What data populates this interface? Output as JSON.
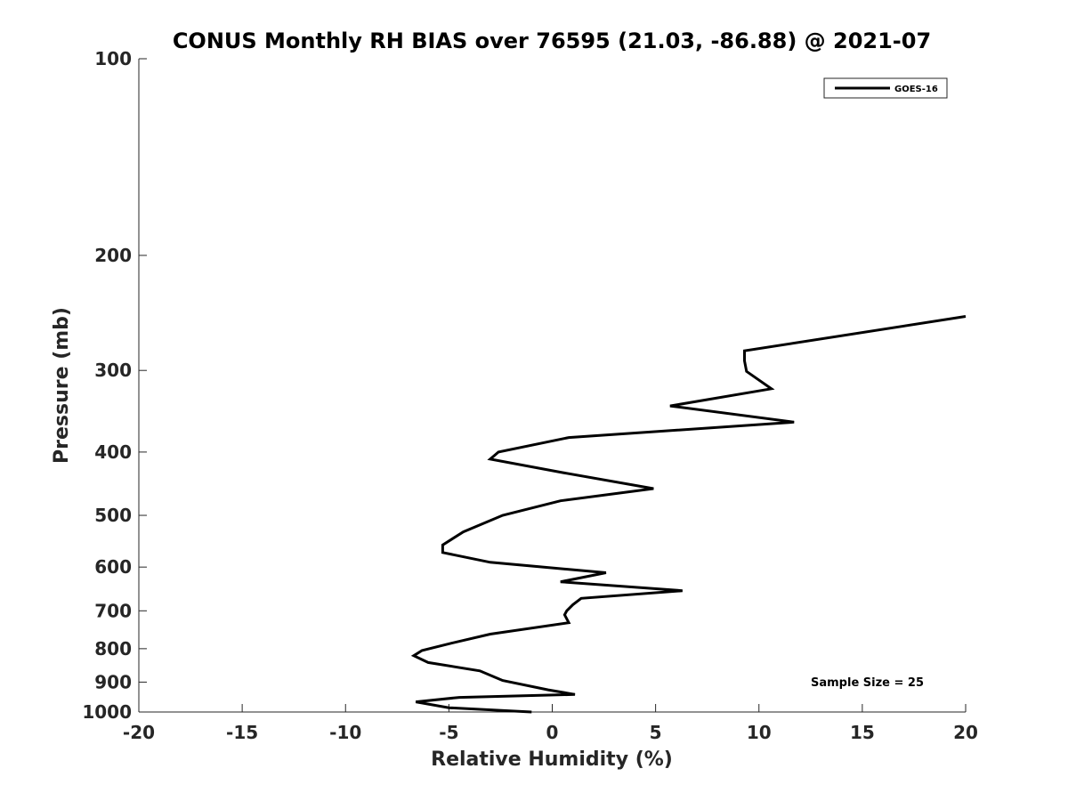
{
  "chart_data": {
    "type": "line",
    "title": "CONUS Monthly RH BIAS over 76595 (21.03, -86.88) @ 2021-07",
    "xlabel": "Relative Humidity (%)",
    "ylabel": "Pressure (mb)",
    "xlim": [
      -20,
      20
    ],
    "ylim": [
      100,
      1000
    ],
    "yscale": "log",
    "yreversed": true,
    "xticks": [
      -20,
      -15,
      -10,
      -5,
      0,
      5,
      10,
      15,
      20
    ],
    "xtick_labels": [
      "-20",
      "-15",
      "-10",
      "-5",
      "0",
      "5",
      "10",
      "15",
      "20"
    ],
    "yticks": [
      100,
      200,
      300,
      400,
      500,
      600,
      700,
      800,
      900,
      1000
    ],
    "ytick_labels": [
      "100",
      "200",
      "300",
      "400",
      "500",
      "600",
      "700",
      "800",
      "900",
      "1000"
    ],
    "grid": false,
    "legend_position": "top-right",
    "annotation": "Sample Size = 25",
    "line_color": "#000000",
    "series": [
      {
        "name": "GOES-16",
        "points": [
          {
            "x": -1.0,
            "y": 1000
          },
          {
            "x": -5.0,
            "y": 985
          },
          {
            "x": -6.6,
            "y": 965
          },
          {
            "x": -4.5,
            "y": 950
          },
          {
            "x": 1.1,
            "y": 940
          },
          {
            "x": -0.2,
            "y": 925
          },
          {
            "x": -2.4,
            "y": 895
          },
          {
            "x": -3.5,
            "y": 865
          },
          {
            "x": -6.0,
            "y": 840
          },
          {
            "x": -6.7,
            "y": 820
          },
          {
            "x": -6.3,
            "y": 805
          },
          {
            "x": -4.9,
            "y": 785
          },
          {
            "x": -3.0,
            "y": 760
          },
          {
            "x": 0.8,
            "y": 730
          },
          {
            "x": 0.6,
            "y": 710
          },
          {
            "x": 0.7,
            "y": 700
          },
          {
            "x": 1.0,
            "y": 685
          },
          {
            "x": 1.4,
            "y": 670
          },
          {
            "x": 6.3,
            "y": 652
          },
          {
            "x": 0.4,
            "y": 632
          },
          {
            "x": 2.6,
            "y": 612
          },
          {
            "x": -3.0,
            "y": 590
          },
          {
            "x": -5.3,
            "y": 570
          },
          {
            "x": -5.3,
            "y": 555
          },
          {
            "x": -4.3,
            "y": 530
          },
          {
            "x": -2.4,
            "y": 500
          },
          {
            "x": 0.4,
            "y": 475
          },
          {
            "x": 4.9,
            "y": 455
          },
          {
            "x": 0.5,
            "y": 430
          },
          {
            "x": -3.0,
            "y": 410
          },
          {
            "x": -2.6,
            "y": 400
          },
          {
            "x": 0.8,
            "y": 380
          },
          {
            "x": 11.7,
            "y": 360
          },
          {
            "x": 5.7,
            "y": 340
          },
          {
            "x": 10.6,
            "y": 320
          },
          {
            "x": 9.4,
            "y": 301
          },
          {
            "x": 9.3,
            "y": 290
          },
          {
            "x": 9.3,
            "y": 280
          },
          {
            "x": 20.0,
            "y": 248
          }
        ]
      }
    ]
  }
}
